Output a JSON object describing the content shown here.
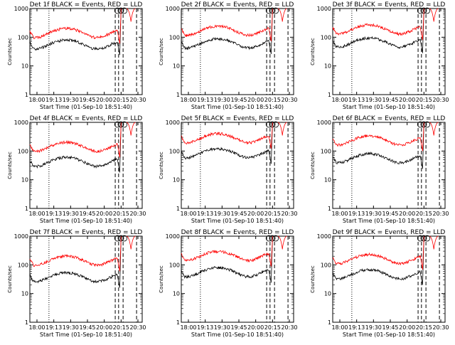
{
  "chart_data": [
    {
      "type": "line",
      "title": "Det 1f BLACK = Events, RED = LLD",
      "xlabel": "Start Time (01-Sep-10 18:51:40)",
      "ylabel": "Counts/sec",
      "x_ticks": [
        "18:00",
        "19:13",
        "19:30",
        "19:45",
        "20:00",
        "20:15",
        "20:30"
      ],
      "y_ticks": [
        "1",
        "10",
        "100",
        "1000"
      ],
      "ylim": [
        1,
        1000
      ],
      "yscale": "log",
      "series": [
        {
          "color": "#000000",
          "base": 60
        },
        {
          "color": "#ff0000",
          "base": 150
        }
      ]
    },
    {
      "type": "line",
      "title": "Det 2f BLACK = Events, RED = LLD",
      "xlabel": "Start Time (01-Sep-10 18:51:40)",
      "ylabel": "Counts/sec",
      "x_ticks": [
        "18:00",
        "19:13",
        "19:30",
        "19:45",
        "20:00",
        "20:15",
        "20:30"
      ],
      "y_ticks": [
        "1",
        "10",
        "100",
        "1000"
      ],
      "ylim": [
        1,
        1000
      ],
      "yscale": "log",
      "series": [
        {
          "color": "#000000",
          "base": 65
        },
        {
          "color": "#ff0000",
          "base": 180
        }
      ]
    },
    {
      "type": "line",
      "title": "Det 3f BLACK = Events, RED = LLD",
      "xlabel": "Start Time (01-Sep-10 18:51:40)",
      "ylabel": "Counts/sec",
      "x_ticks": [
        "18:00",
        "19:13",
        "19:30",
        "19:45",
        "20:00",
        "20:15",
        "20:30"
      ],
      "y_ticks": [
        "1",
        "10",
        "100",
        "1000"
      ],
      "ylim": [
        1,
        1000
      ],
      "yscale": "log",
      "series": [
        {
          "color": "#000000",
          "base": 70
        },
        {
          "color": "#ff0000",
          "base": 200
        }
      ]
    },
    {
      "type": "line",
      "title": "Det 4f BLACK = Events, RED = LLD",
      "xlabel": "Start Time (01-Sep-10 18:51:40)",
      "ylabel": "Counts/sec",
      "x_ticks": [
        "18:00",
        "19:13",
        "19:30",
        "19:45",
        "20:00",
        "20:15",
        "20:30"
      ],
      "y_ticks": [
        "1",
        "10",
        "100",
        "1000"
      ],
      "ylim": [
        1,
        1000
      ],
      "yscale": "log",
      "series": [
        {
          "color": "#000000",
          "base": 45
        },
        {
          "color": "#ff0000",
          "base": 150
        }
      ]
    },
    {
      "type": "line",
      "title": "Det 5f BLACK = Events, RED = LLD",
      "xlabel": "Start Time (01-Sep-10 18:51:40)",
      "ylabel": "Counts/sec",
      "x_ticks": [
        "18:00",
        "19:13",
        "19:30",
        "19:45",
        "20:00",
        "20:15",
        "20:30"
      ],
      "y_ticks": [
        "1",
        "10",
        "100",
        "1000"
      ],
      "ylim": [
        1,
        1000
      ],
      "yscale": "log",
      "series": [
        {
          "color": "#000000",
          "base": 90
        },
        {
          "color": "#ff0000",
          "base": 300
        }
      ]
    },
    {
      "type": "line",
      "title": "Det 6f BLACK = Events, RED = LLD",
      "xlabel": "Start Time (01-Sep-10 18:51:40)",
      "ylabel": "Counts/sec",
      "x_ticks": [
        "18:00",
        "19:13",
        "19:30",
        "19:45",
        "20:00",
        "20:15",
        "20:30"
      ],
      "y_ticks": [
        "1",
        "10",
        "100",
        "1000"
      ],
      "ylim": [
        1,
        1000
      ],
      "yscale": "log",
      "series": [
        {
          "color": "#000000",
          "base": 60
        },
        {
          "color": "#ff0000",
          "base": 250
        }
      ]
    },
    {
      "type": "line",
      "title": "Det 7f BLACK = Events, RED = LLD",
      "xlabel": "Start Time (01-Sep-10 18:51:40)",
      "ylabel": "Counts/sec",
      "x_ticks": [
        "18:00",
        "19:13",
        "19:30",
        "19:45",
        "20:00",
        "20:15",
        "20:30"
      ],
      "y_ticks": [
        "1",
        "10",
        "100",
        "1000"
      ],
      "ylim": [
        1,
        1000
      ],
      "yscale": "log",
      "series": [
        {
          "color": "#000000",
          "base": 40
        },
        {
          "color": "#ff0000",
          "base": 150
        }
      ]
    },
    {
      "type": "line",
      "title": "Det 8f BLACK = Events, RED = LLD",
      "xlabel": "Start Time (01-Sep-10 18:51:40)",
      "ylabel": "Counts/sec",
      "x_ticks": [
        "18:00",
        "19:13",
        "19:30",
        "19:45",
        "20:00",
        "20:15",
        "20:30"
      ],
      "y_ticks": [
        "1",
        "10",
        "100",
        "1000"
      ],
      "ylim": [
        1,
        1000
      ],
      "yscale": "log",
      "series": [
        {
          "color": "#000000",
          "base": 60
        },
        {
          "color": "#ff0000",
          "base": 220
        }
      ]
    },
    {
      "type": "line",
      "title": "Det 9f BLACK = Events, RED = LLD",
      "xlabel": "Start Time (01-Sep-10 18:51:40)",
      "ylabel": "Counts/sec",
      "x_ticks": [
        "18:00",
        "19:13",
        "19:30",
        "19:45",
        "20:00",
        "20:15",
        "20:30"
      ],
      "y_ticks": [
        "1",
        "10",
        "100",
        "1000"
      ],
      "ylim": [
        1,
        1000
      ],
      "yscale": "log",
      "series": [
        {
          "color": "#000000",
          "base": 50
        },
        {
          "color": "#ff0000",
          "base": 170
        }
      ]
    }
  ]
}
